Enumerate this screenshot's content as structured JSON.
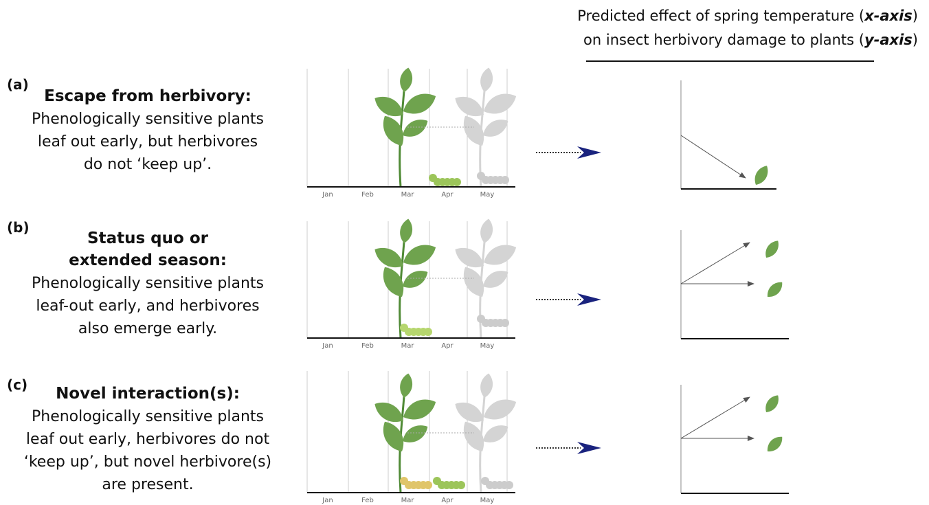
{
  "header": {
    "line1": [
      "Predicted effect of spring temperature (",
      "x-axis",
      ")"
    ],
    "line2": [
      "on insect herbivory damage to plants (",
      "y-axis",
      ")"
    ]
  },
  "panels": [
    {
      "label": "(a)",
      "title": [
        "Escape from herbivory:"
      ],
      "text": [
        "Phenologically sensitive plants",
        "leaf out early, but herbivores",
        "do not ‘keep up’."
      ],
      "months": [
        "Jan",
        "Feb",
        "Mar",
        "Apr",
        "May"
      ]
    },
    {
      "label": "(b)",
      "title": [
        "Status quo or",
        "extended season:"
      ],
      "text": [
        "Phenologically sensitive plants",
        "leaf-out early, and herbivores",
        "also emerge early."
      ],
      "months": [
        "Jan",
        "Feb",
        "Mar",
        "Apr",
        "May"
      ]
    },
    {
      "label": "(c)",
      "title": [
        "Novel interaction(s):"
      ],
      "text": [
        "Phenologically sensitive plants",
        "leaf out early, herbivores do not",
        "‘keep up’, but novel herbivore(s)",
        "are present."
      ],
      "months": [
        "Jan",
        "Feb",
        "Mar",
        "Apr",
        "May"
      ]
    }
  ]
}
